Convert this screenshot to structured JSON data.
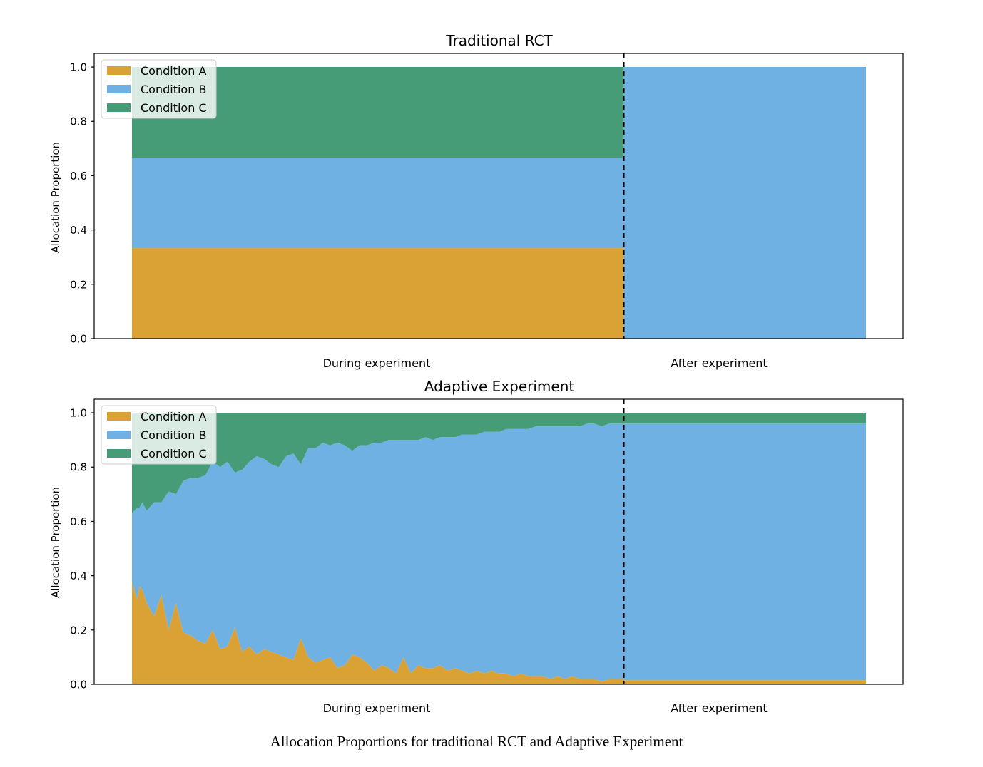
{
  "colors": {
    "condition_a": "#DAA135",
    "condition_b": "#6EB1E2",
    "condition_c": "#469C76",
    "divider": "#000000"
  },
  "caption": "Allocation Proportions for traditional RCT and Adaptive Experiment",
  "chart_data": [
    {
      "type": "area",
      "stacked": true,
      "title": "Traditional RCT",
      "ylabel": "Allocation Proportion",
      "xlabel": "",
      "x_labels": [
        "During experiment",
        "After experiment"
      ],
      "ylim": [
        0,
        1.05
      ],
      "yticks": [
        "0.0",
        "0.2",
        "0.4",
        "0.6",
        "0.8",
        "1.0"
      ],
      "grid": false,
      "legend": {
        "placement": "upper-left",
        "entries": [
          "Condition A",
          "Condition B",
          "Condition C"
        ]
      },
      "divider": {
        "style": "dashed",
        "position": "end of experiment"
      },
      "x_range": [
        0,
        100
      ],
      "divider_x": 67,
      "series": [
        {
          "name": "Condition A",
          "x": [
            0,
            67,
            67,
            100
          ],
          "values": [
            0.333,
            0.333,
            0,
            0
          ]
        },
        {
          "name": "Condition B",
          "x": [
            0,
            67,
            67,
            100
          ],
          "values": [
            0.333,
            0.333,
            1.0,
            1.0
          ]
        },
        {
          "name": "Condition C",
          "x": [
            0,
            67,
            67,
            100
          ],
          "values": [
            0.334,
            0.334,
            0,
            0
          ]
        }
      ]
    },
    {
      "type": "area",
      "stacked": true,
      "title": "Adaptive Experiment",
      "ylabel": "Allocation Proportion",
      "xlabel": "",
      "x_labels": [
        "During experiment",
        "After experiment"
      ],
      "ylim": [
        0,
        1.05
      ],
      "yticks": [
        "0.0",
        "0.2",
        "0.4",
        "0.6",
        "0.8",
        "1.0"
      ],
      "grid": false,
      "legend": {
        "placement": "upper-left",
        "entries": [
          "Condition A",
          "Condition B",
          "Condition C"
        ]
      },
      "divider": {
        "style": "dashed",
        "position": "end of experiment"
      },
      "x_range": [
        0,
        100
      ],
      "divider_x": 67,
      "x": [
        0,
        0.7,
        1,
        1.4,
        2,
        3,
        4,
        5,
        6,
        7,
        8,
        9,
        10,
        11,
        12,
        13,
        14,
        15,
        16,
        17,
        18,
        19,
        20,
        21,
        22,
        23,
        24,
        25,
        26,
        27,
        28,
        29,
        30,
        31,
        32,
        33,
        34,
        35,
        36,
        37,
        38,
        39,
        40,
        41,
        42,
        43,
        44,
        45,
        46,
        47,
        48,
        49,
        50,
        51,
        52,
        53,
        54,
        55,
        56,
        57,
        58,
        59,
        60,
        61,
        62,
        63,
        64,
        65,
        66,
        67,
        67.01,
        100
      ],
      "series": [
        {
          "name": "Condition A",
          "values": [
            0.38,
            0.31,
            0.36,
            0.35,
            0.3,
            0.25,
            0.33,
            0.2,
            0.3,
            0.19,
            0.18,
            0.16,
            0.15,
            0.2,
            0.13,
            0.14,
            0.21,
            0.12,
            0.14,
            0.11,
            0.13,
            0.12,
            0.11,
            0.1,
            0.09,
            0.17,
            0.1,
            0.08,
            0.09,
            0.1,
            0.06,
            0.07,
            0.11,
            0.1,
            0.08,
            0.05,
            0.07,
            0.06,
            0.04,
            0.1,
            0.04,
            0.07,
            0.06,
            0.06,
            0.07,
            0.05,
            0.06,
            0.05,
            0.04,
            0.05,
            0.04,
            0.05,
            0.04,
            0.04,
            0.03,
            0.04,
            0.03,
            0.03,
            0.03,
            0.02,
            0.03,
            0.02,
            0.03,
            0.02,
            0.02,
            0.02,
            0.01,
            0.02,
            0.02,
            0.02,
            0.015,
            0.015
          ]
        },
        {
          "name": "Condition B",
          "values": [
            0.25,
            0.34,
            0.29,
            0.32,
            0.34,
            0.42,
            0.34,
            0.51,
            0.4,
            0.56,
            0.58,
            0.6,
            0.62,
            0.62,
            0.67,
            0.68,
            0.57,
            0.67,
            0.68,
            0.73,
            0.7,
            0.69,
            0.69,
            0.74,
            0.76,
            0.64,
            0.77,
            0.79,
            0.8,
            0.78,
            0.83,
            0.81,
            0.75,
            0.78,
            0.8,
            0.84,
            0.82,
            0.84,
            0.86,
            0.8,
            0.86,
            0.83,
            0.85,
            0.84,
            0.84,
            0.86,
            0.85,
            0.87,
            0.88,
            0.87,
            0.89,
            0.88,
            0.89,
            0.9,
            0.91,
            0.9,
            0.91,
            0.92,
            0.92,
            0.93,
            0.92,
            0.93,
            0.92,
            0.93,
            0.94,
            0.94,
            0.94,
            0.94,
            0.94,
            0.94,
            0.945,
            0.945
          ]
        },
        {
          "name": "Condition C",
          "values": [
            0.37,
            0.35,
            0.35,
            0.33,
            0.36,
            0.33,
            0.33,
            0.29,
            0.3,
            0.25,
            0.24,
            0.24,
            0.23,
            0.18,
            0.2,
            0.18,
            0.22,
            0.21,
            0.18,
            0.16,
            0.17,
            0.19,
            0.2,
            0.16,
            0.15,
            0.19,
            0.13,
            0.13,
            0.11,
            0.12,
            0.11,
            0.12,
            0.14,
            0.12,
            0.12,
            0.11,
            0.11,
            0.1,
            0.1,
            0.1,
            0.1,
            0.1,
            0.09,
            0.1,
            0.09,
            0.09,
            0.09,
            0.08,
            0.08,
            0.08,
            0.07,
            0.07,
            0.07,
            0.06,
            0.06,
            0.06,
            0.06,
            0.05,
            0.05,
            0.05,
            0.05,
            0.05,
            0.05,
            0.05,
            0.04,
            0.04,
            0.05,
            0.04,
            0.04,
            0.04,
            0.04,
            0.04
          ]
        }
      ]
    }
  ]
}
